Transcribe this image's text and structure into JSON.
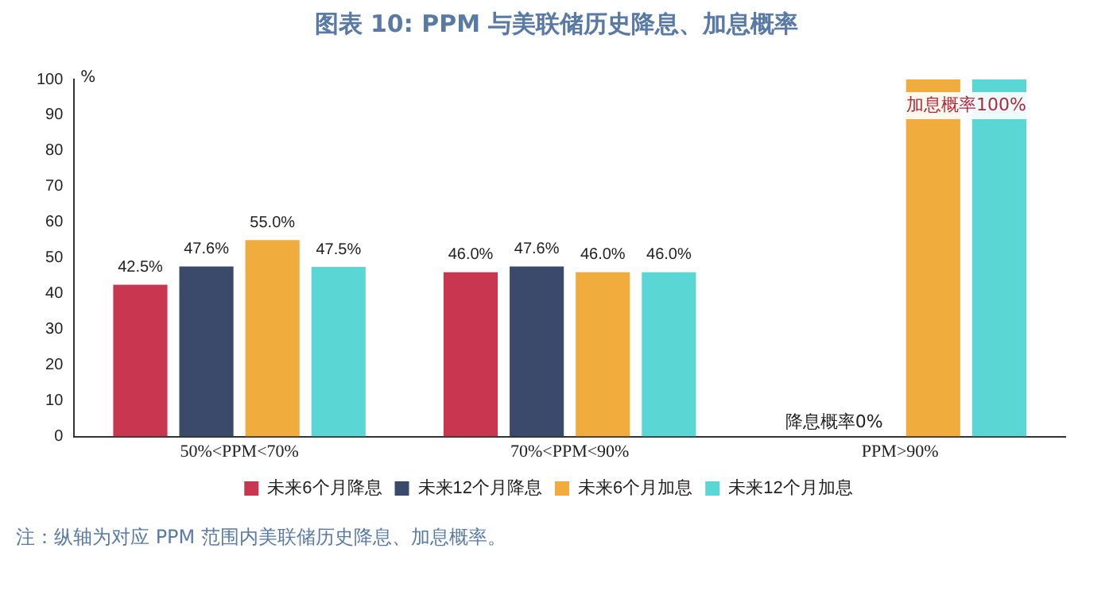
{
  "chart_data": {
    "type": "bar",
    "title": "图表 10: PPM 与美联储历史降息、加息概率",
    "ylabel": "%",
    "categories": [
      "50%<PPM<70%",
      "70%<PPM<90%",
      "PPM>90%"
    ],
    "series": [
      {
        "name": "未来6个月降息",
        "color": "#c8374f",
        "values": [
          42.5,
          46.0,
          0
        ],
        "value_labels": [
          "42.5%",
          "46.0%",
          null
        ]
      },
      {
        "name": "未来12个月降息",
        "color": "#3b4a6b",
        "values": [
          47.6,
          47.6,
          0
        ],
        "value_labels": [
          "47.6%",
          "47.6%",
          null
        ]
      },
      {
        "name": "未来6个月加息",
        "color": "#f0ac3c",
        "values": [
          55.0,
          46.0,
          100
        ],
        "value_labels": [
          "55.0%",
          "46.0%",
          null
        ]
      },
      {
        "name": "未来12个月加息",
        "color": "#5ad6d4",
        "values": [
          47.5,
          46.0,
          100
        ],
        "value_labels": [
          "47.5%",
          "46.0%",
          null
        ]
      }
    ],
    "ylim": [
      0,
      100
    ],
    "yticks": [
      0,
      10,
      20,
      30,
      40,
      50,
      60,
      70,
      80,
      90,
      100
    ],
    "grid": false,
    "legend": "bottom",
    "annotations": [
      {
        "text": "降息概率0%",
        "x": "PPM>90%",
        "y": 0
      },
      {
        "text": "加息概率100%",
        "x": "PPM>90%",
        "y": 100
      },
      "注：纵轴为对应 PPM 范围内美联储历史降息、加息概率。"
    ]
  }
}
